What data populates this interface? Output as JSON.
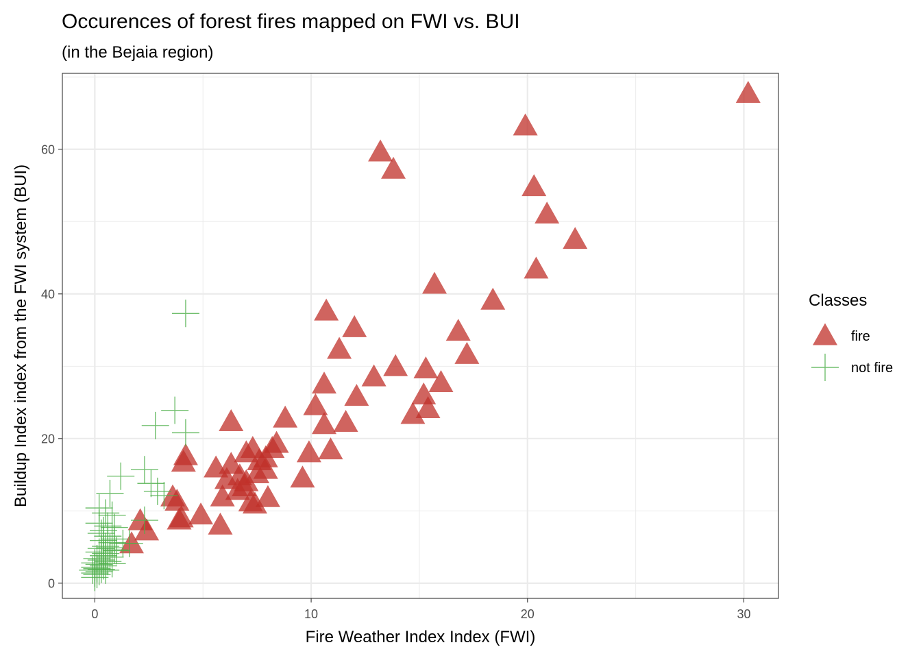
{
  "chart_data": {
    "type": "scatter",
    "title": "Occurences of forest fires mapped on FWI vs. BUI",
    "subtitle": "(in the Bejaia region)",
    "xlabel": "Fire Weather Index Index (FWI)",
    "ylabel": "Buildup Index index from the FWI system (BUI)",
    "xlim": [
      -1.5,
      31.6
    ],
    "ylim": [
      -2.1,
      70.5
    ],
    "x_ticks": [
      0,
      10,
      20,
      30
    ],
    "y_ticks": [
      0,
      20,
      40,
      60
    ],
    "x_tick_labels": [
      "0",
      "10",
      "20",
      "30"
    ],
    "y_tick_labels": [
      "0",
      "20",
      "40",
      "60"
    ],
    "grid": true,
    "legend": {
      "title": "Classes",
      "position": "right"
    },
    "series": [
      {
        "name": "fire",
        "marker": "triangle",
        "color": "#c0302a",
        "points": [
          [
            30.2,
            67.7
          ],
          [
            19.9,
            63.2
          ],
          [
            13.2,
            59.6
          ],
          [
            13.8,
            57.2
          ],
          [
            20.3,
            54.8
          ],
          [
            20.9,
            51.0
          ],
          [
            22.2,
            47.5
          ],
          [
            20.4,
            43.4
          ],
          [
            15.7,
            41.3
          ],
          [
            18.4,
            39.1
          ],
          [
            10.7,
            37.6
          ],
          [
            12.0,
            35.3
          ],
          [
            16.8,
            34.8
          ],
          [
            11.3,
            32.3
          ],
          [
            17.2,
            31.6
          ],
          [
            13.9,
            29.9
          ],
          [
            15.3,
            29.6
          ],
          [
            12.9,
            28.5
          ],
          [
            16.0,
            27.7
          ],
          [
            10.6,
            27.5
          ],
          [
            15.2,
            26.0
          ],
          [
            12.1,
            25.8
          ],
          [
            10.2,
            24.5
          ],
          [
            15.4,
            24.1
          ],
          [
            14.7,
            23.3
          ],
          [
            8.8,
            22.8
          ],
          [
            6.3,
            22.3
          ],
          [
            10.6,
            21.9
          ],
          [
            11.6,
            22.2
          ],
          [
            8.4,
            19.3
          ],
          [
            8.2,
            18.6
          ],
          [
            7.3,
            18.6
          ],
          [
            7.0,
            18.0
          ],
          [
            10.9,
            18.4
          ],
          [
            9.9,
            18.0
          ],
          [
            4.2,
            17.6
          ],
          [
            4.1,
            16.7
          ],
          [
            7.9,
            17.3
          ],
          [
            7.6,
            16.9
          ],
          [
            6.3,
            16.4
          ],
          [
            5.6,
            15.9
          ],
          [
            7.9,
            15.7
          ],
          [
            7.5,
            15.1
          ],
          [
            6.7,
            14.8
          ],
          [
            6.1,
            14.3
          ],
          [
            9.6,
            14.5
          ],
          [
            7.0,
            14.0
          ],
          [
            6.9,
            13.3
          ],
          [
            6.6,
            12.8
          ],
          [
            5.9,
            11.9
          ],
          [
            8.0,
            11.8
          ],
          [
            7.2,
            11.2
          ],
          [
            7.4,
            10.9
          ],
          [
            3.6,
            11.9
          ],
          [
            3.8,
            11.3
          ],
          [
            4.9,
            9.4
          ],
          [
            4.0,
            9.0
          ],
          [
            3.9,
            8.7
          ],
          [
            5.8,
            8.0
          ],
          [
            2.1,
            8.6
          ],
          [
            2.4,
            7.2
          ],
          [
            1.7,
            5.4
          ]
        ]
      },
      {
        "name": "not fire",
        "marker": "cross",
        "color": "#4daf4a",
        "points": [
          [
            4.2,
            37.3
          ],
          [
            3.7,
            23.9
          ],
          [
            4.2,
            20.8
          ],
          [
            2.8,
            21.8
          ],
          [
            2.3,
            15.7
          ],
          [
            1.2,
            14.8
          ],
          [
            2.6,
            13.8
          ],
          [
            2.9,
            12.7
          ],
          [
            3.2,
            12.1
          ],
          [
            0.7,
            12.4
          ],
          [
            0.2,
            10.4
          ],
          [
            0.5,
            9.7
          ],
          [
            0.8,
            9.4
          ],
          [
            2.3,
            8.7
          ],
          [
            0.2,
            8.3
          ],
          [
            0.6,
            7.9
          ],
          [
            0.9,
            7.7
          ],
          [
            0.4,
            7.3
          ],
          [
            0.3,
            6.9
          ],
          [
            0.6,
            6.5
          ],
          [
            0.9,
            6.1
          ],
          [
            0.4,
            5.9
          ],
          [
            0.8,
            5.6
          ],
          [
            1.3,
            5.5
          ],
          [
            1.6,
            5.5
          ],
          [
            0.5,
            5.1
          ],
          [
            0.7,
            4.9
          ],
          [
            0.3,
            4.8
          ],
          [
            0.9,
            4.6
          ],
          [
            0.2,
            4.3
          ],
          [
            0.5,
            4.1
          ],
          [
            0.4,
            3.8
          ],
          [
            0.7,
            3.6
          ],
          [
            0.1,
            3.4
          ],
          [
            0.3,
            3.2
          ],
          [
            0.6,
            3.0
          ],
          [
            0.0,
            2.8
          ],
          [
            0.2,
            2.6
          ],
          [
            0.4,
            2.4
          ],
          [
            0.0,
            2.2
          ],
          [
            0.1,
            2.0
          ],
          [
            0.3,
            1.9
          ],
          [
            -0.1,
            1.8
          ],
          [
            0.2,
            1.6
          ],
          [
            0.0,
            1.4
          ],
          [
            0.1,
            1.2
          ],
          [
            0.0,
            0.8
          ],
          [
            0.5,
            1.8
          ],
          [
            0.8,
            2.7
          ],
          [
            1.0,
            4.5
          ]
        ]
      }
    ]
  }
}
